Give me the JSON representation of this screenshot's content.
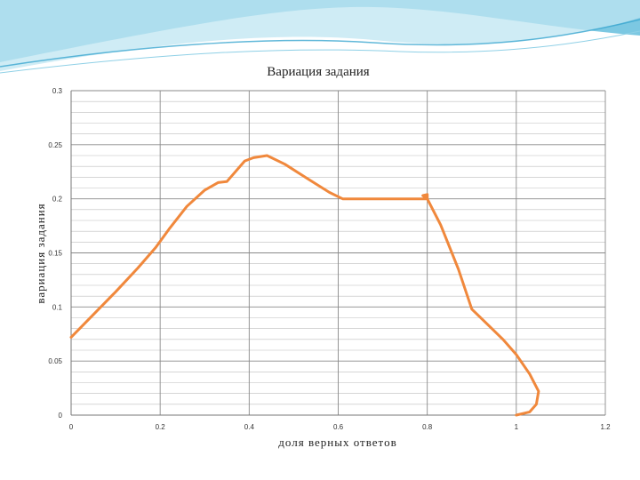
{
  "colors": {
    "series": "#f0883c",
    "banner_dark": "#5fb8d8",
    "banner_light": "#bfe5f2"
  },
  "chart_data": {
    "type": "line",
    "title": "Вариация задания",
    "xlabel": "доля верных ответов",
    "ylabel": "вариация задания",
    "xlim": [
      0,
      1.2
    ],
    "ylim": [
      0,
      0.3
    ],
    "x_ticks": [
      "0",
      "0.2",
      "0.4",
      "0.6",
      "0.8",
      "1",
      "1.2"
    ],
    "y_ticks": [
      "0",
      "0.05",
      "0.1",
      "0.15",
      "0.2",
      "0.25",
      "0.3"
    ],
    "grid": true,
    "series": [
      {
        "points": [
          [
            0.0,
            0.072
          ],
          [
            0.05,
            0.093
          ],
          [
            0.1,
            0.114
          ],
          [
            0.15,
            0.136
          ],
          [
            0.19,
            0.155
          ],
          [
            0.22,
            0.172
          ],
          [
            0.26,
            0.193
          ],
          [
            0.3,
            0.208
          ],
          [
            0.33,
            0.215
          ],
          [
            0.35,
            0.216
          ],
          [
            0.39,
            0.235
          ],
          [
            0.41,
            0.238
          ],
          [
            0.44,
            0.24
          ],
          [
            0.48,
            0.232
          ],
          [
            0.53,
            0.219
          ],
          [
            0.58,
            0.206
          ],
          [
            0.61,
            0.2
          ],
          [
            0.7,
            0.2
          ],
          [
            0.8,
            0.2
          ],
          [
            0.79,
            0.203
          ],
          [
            0.8,
            0.204
          ],
          [
            0.8,
            0.2
          ],
          [
            0.83,
            0.176
          ],
          [
            0.87,
            0.135
          ],
          [
            0.9,
            0.098
          ],
          [
            0.94,
            0.082
          ],
          [
            0.97,
            0.07
          ],
          [
            1.0,
            0.056
          ],
          [
            1.03,
            0.038
          ],
          [
            1.05,
            0.022
          ],
          [
            1.045,
            0.01
          ],
          [
            1.03,
            0.003
          ],
          [
            1.0,
            0.0
          ]
        ]
      }
    ]
  }
}
